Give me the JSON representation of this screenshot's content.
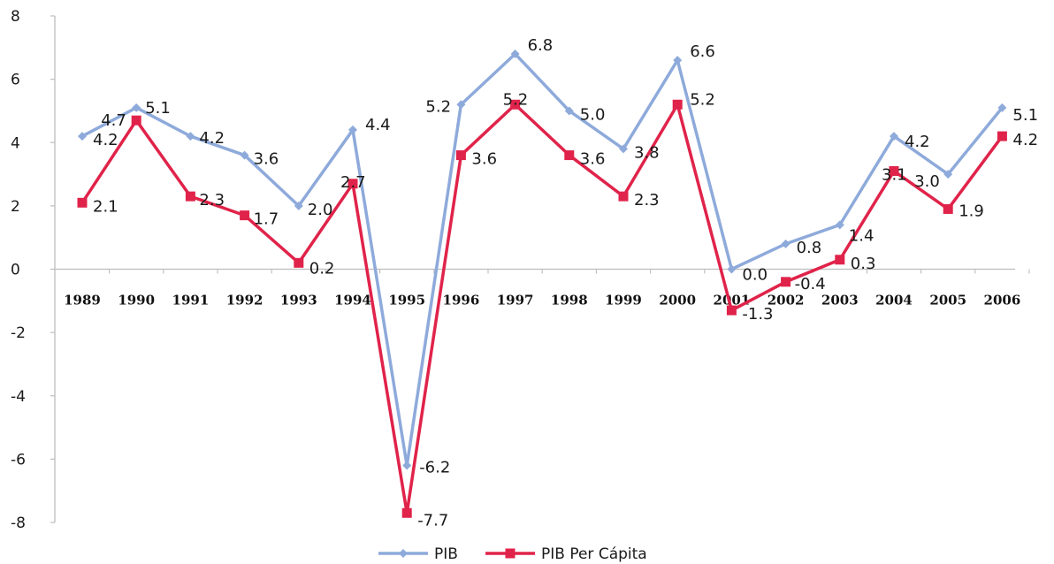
{
  "chart_data": {
    "type": "line",
    "title": "",
    "xlabel": "",
    "ylabel": "",
    "categories": [
      "1989",
      "1990",
      "1991",
      "1992",
      "1993",
      "1994",
      "1995",
      "1996",
      "1997",
      "1998",
      "1999",
      "2000",
      "2001",
      "2002",
      "2003",
      "2004",
      "2005",
      "2006"
    ],
    "ylim": [
      -8,
      8
    ],
    "yticks": [
      "8",
      "6",
      "4",
      "2",
      "0",
      "-2",
      "-4",
      "-6",
      "-8"
    ],
    "grid": false,
    "legend_position": "bottom",
    "series": [
      {
        "name": "PIB",
        "color": "#8eaadb",
        "marker": "diamond",
        "values": [
          4.2,
          5.1,
          4.2,
          3.6,
          2.0,
          4.4,
          -6.2,
          5.2,
          6.8,
          5.0,
          3.8,
          6.6,
          0.0,
          0.8,
          1.4,
          4.2,
          3.0,
          5.1
        ],
        "labels": [
          "4.2",
          "5.1",
          "4.2",
          "3.6",
          "2.0",
          "4.4",
          "-6.2",
          "5.2",
          "6.8",
          "5.0",
          "3.8",
          "6.6",
          "0.0",
          "0.8",
          "1.4",
          "4.2",
          "3.0",
          "5.1"
        ]
      },
      {
        "name": "PIB Per Cápita",
        "color": "#e0234a",
        "marker": "square",
        "values": [
          2.1,
          4.7,
          2.3,
          1.7,
          0.2,
          2.7,
          -7.7,
          3.6,
          5.2,
          3.6,
          2.3,
          5.2,
          -1.3,
          -0.4,
          0.3,
          3.1,
          1.9,
          4.2
        ],
        "labels": [
          "2.1",
          "4.7",
          "2.3",
          "1.7",
          "0.2",
          "2.7",
          "-7.7",
          "3.6",
          "5.2",
          "3.6",
          "2.3",
          "5.2",
          "-1.3",
          "-0.4",
          "0.3",
          "3.1",
          "1.9",
          "4.2"
        ]
      }
    ]
  }
}
